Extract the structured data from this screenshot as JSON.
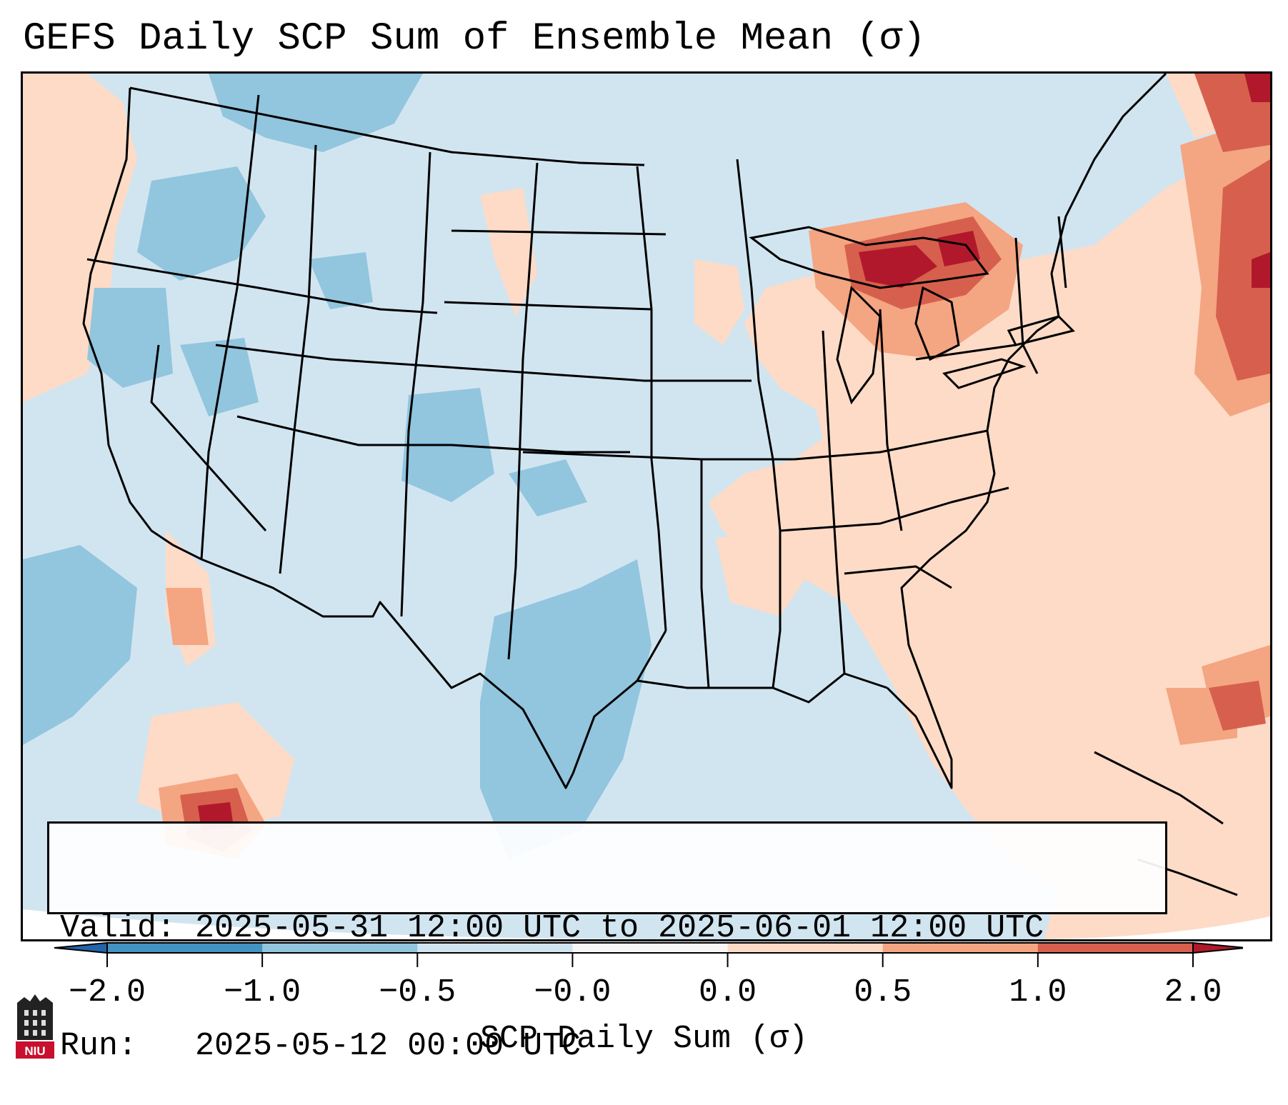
{
  "title": "GEFS Daily SCP Sum of Ensemble Mean (σ)",
  "info": {
    "valid_line": "Valid: 2025-05-31 12:00 UTC to 2025-06-01 12:00 UTC",
    "run_line": "Run:   2025-05-12 00:00 UTC"
  },
  "colorbar": {
    "label": "SCP Daily Sum (σ)",
    "ticks": [
      "−2.0",
      "−1.0",
      "−0.5",
      "−0.0",
      "0.0",
      "0.5",
      "1.0",
      "2.0"
    ],
    "colors": [
      "#4393c3",
      "#92c5de",
      "#d1e5f0",
      "#f7f7f7",
      "#fddbc7",
      "#f4a582",
      "#d6604d"
    ],
    "extend_min_color": "#2166ac",
    "extend_max_color": "#b2182b"
  },
  "logo": {
    "text": "NIU",
    "icon": "niu-tower-logo-icon",
    "color": "#c8102e"
  }
}
